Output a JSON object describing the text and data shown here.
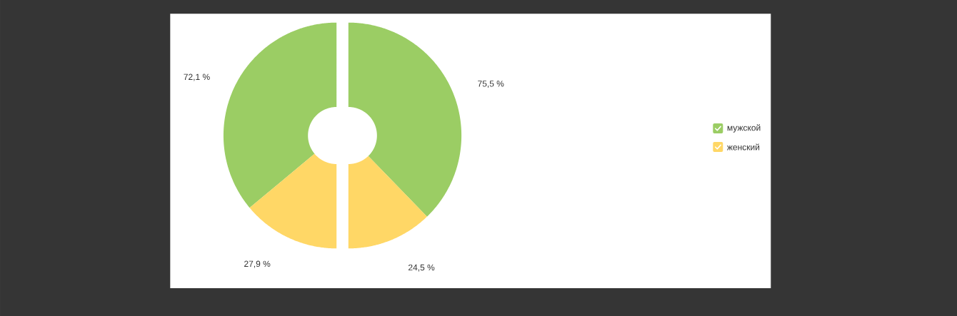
{
  "chart_data": [
    {
      "type": "donut",
      "categories": [
        null,
        null
      ],
      "colors": [
        "#9bcd64",
        "#ffd766"
      ],
      "values": [
        72.1,
        27.9
      ],
      "value_labels": [
        "72,1 %",
        "27,9 %"
      ]
    },
    {
      "type": "donut",
      "categories": [
        "мужской",
        "женский"
      ],
      "colors": [
        "#9bcd64",
        "#ffd766"
      ],
      "values": [
        75.5,
        24.5
      ],
      "value_labels": [
        "75,5 %",
        "24,5 %"
      ],
      "legend": "right"
    }
  ]
}
